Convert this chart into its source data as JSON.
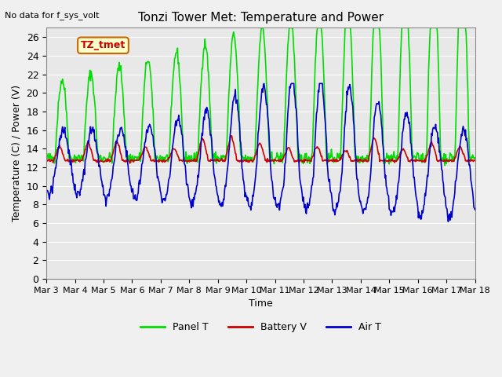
{
  "title": "Tonzi Tower Met: Temperature and Power",
  "xlabel": "Time",
  "ylabel": "Temperature (C) / Power (V)",
  "top_left_text": "No data for f_sys_volt",
  "legend_label": "TZ_tmet",
  "ylim": [
    0,
    27
  ],
  "yticks": [
    0,
    2,
    4,
    6,
    8,
    10,
    12,
    14,
    16,
    18,
    20,
    22,
    24,
    26
  ],
  "x_tick_labels": [
    "Mar 3",
    "Mar 4",
    "Mar 5",
    "Mar 6",
    "Mar 7",
    "Mar 8",
    "Mar 9",
    "Mar 10",
    "Mar 11",
    "Mar 12",
    "Mar 13",
    "Mar 14",
    "Mar 15",
    "Mar 16",
    "Mar 17",
    "Mar 18"
  ],
  "panel_color": "#00dd00",
  "battery_color": "#cc0000",
  "air_color": "#0000cc",
  "plot_bg_color": "#e8e8e8",
  "fig_bg_color": "#f0f0f0",
  "grid_color": "#ffffff",
  "line_width": 1.2,
  "legend_entries": [
    "Panel T",
    "Battery V",
    "Air T"
  ],
  "num_days": 15,
  "points_per_day": 48
}
